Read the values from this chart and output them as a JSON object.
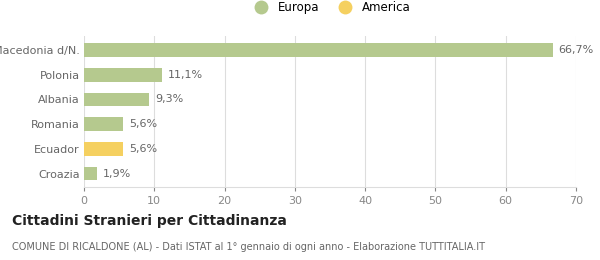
{
  "categories": [
    "Croazia",
    "Ecuador",
    "Romania",
    "Albania",
    "Polonia",
    "Macedonia d/N."
  ],
  "values": [
    1.9,
    5.6,
    5.6,
    9.3,
    11.1,
    66.7
  ],
  "labels": [
    "1,9%",
    "5,6%",
    "5,6%",
    "9,3%",
    "11,1%",
    "66,7%"
  ],
  "bar_colors": [
    "#b5c98e",
    "#f5d060",
    "#b5c98e",
    "#b5c98e",
    "#b5c98e",
    "#b5c98e"
  ],
  "legend_items": [
    {
      "label": "Europa",
      "color": "#b5c98e"
    },
    {
      "label": "America",
      "color": "#f5d060"
    }
  ],
  "xlim": [
    0,
    70
  ],
  "xticks": [
    0,
    10,
    20,
    30,
    40,
    50,
    60,
    70
  ],
  "title": "Cittadini Stranieri per Cittadinanza",
  "subtitle": "COMUNE DI RICALDONE (AL) - Dati ISTAT al 1° gennaio di ogni anno - Elaborazione TUTTITALIA.IT",
  "bg_color": "#ffffff",
  "grid_color": "#dddddd",
  "bar_label_fontsize": 8,
  "tick_fontsize": 8,
  "ytick_fontsize": 8,
  "title_fontsize": 10,
  "subtitle_fontsize": 7,
  "legend_fontsize": 8.5
}
